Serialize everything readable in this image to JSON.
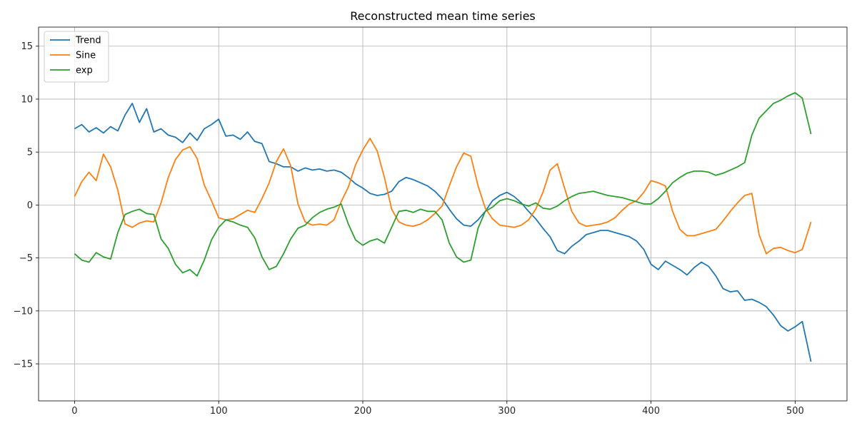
{
  "chart_data": {
    "type": "line",
    "title": "Reconstructed mean time series",
    "xlabel": "",
    "ylabel": "",
    "xlim": [
      -25,
      536
    ],
    "ylim": [
      -18.5,
      16.8
    ],
    "x_ticks": [
      0,
      100,
      200,
      300,
      400,
      500
    ],
    "y_ticks": [
      -15,
      -10,
      -5,
      0,
      5,
      10,
      15
    ],
    "grid": true,
    "legend_position": "top-left",
    "series": [
      {
        "name": "Trend",
        "color": "#1f77b4",
        "x": [
          0,
          5,
          10,
          15,
          20,
          25,
          30,
          35,
          40,
          45,
          50,
          55,
          60,
          65,
          70,
          75,
          80,
          85,
          90,
          95,
          100,
          105,
          110,
          115,
          120,
          125,
          130,
          135,
          140,
          145,
          150,
          155,
          160,
          165,
          170,
          175,
          180,
          185,
          190,
          195,
          200,
          205,
          210,
          215,
          220,
          225,
          230,
          235,
          240,
          245,
          250,
          255,
          260,
          265,
          270,
          275,
          280,
          285,
          290,
          295,
          300,
          305,
          310,
          315,
          320,
          325,
          330,
          335,
          340,
          345,
          350,
          355,
          360,
          365,
          370,
          375,
          380,
          385,
          390,
          395,
          400,
          405,
          410,
          415,
          420,
          425,
          430,
          435,
          440,
          445,
          450,
          455,
          460,
          465,
          470,
          475,
          480,
          485,
          490,
          495,
          500,
          505,
          511
        ],
        "values": [
          7.2,
          7.6,
          6.9,
          7.3,
          6.8,
          7.4,
          7.0,
          8.5,
          9.6,
          7.8,
          9.1,
          6.9,
          7.2,
          6.6,
          6.4,
          5.9,
          6.8,
          6.1,
          7.2,
          7.6,
          8.1,
          6.5,
          6.6,
          6.2,
          6.9,
          6.0,
          5.8,
          4.1,
          3.9,
          3.6,
          3.6,
          3.2,
          3.5,
          3.3,
          3.4,
          3.2,
          3.3,
          3.1,
          2.6,
          2.0,
          1.6,
          1.1,
          0.9,
          1.0,
          1.3,
          2.2,
          2.6,
          2.4,
          2.1,
          1.8,
          1.3,
          0.6,
          -0.4,
          -1.3,
          -1.9,
          -2.0,
          -1.4,
          -0.6,
          0.4,
          0.9,
          1.2,
          0.8,
          0.2,
          -0.6,
          -1.3,
          -2.2,
          -3.0,
          -4.3,
          -4.6,
          -3.9,
          -3.4,
          -2.8,
          -2.6,
          -2.4,
          -2.4,
          -2.6,
          -2.8,
          -3.0,
          -3.4,
          -4.2,
          -5.6,
          -6.1,
          -5.3,
          -5.7,
          -6.1,
          -6.6,
          -5.9,
          -5.4,
          -5.8,
          -6.7,
          -7.9,
          -8.2,
          -8.1,
          -9.0,
          -8.9,
          -9.2,
          -9.6,
          -10.4,
          -11.4,
          -11.9,
          -11.5,
          -11.0,
          -14.8
        ]
      },
      {
        "name": "Sine",
        "color": "#ff7f0e",
        "x": [
          0,
          5,
          10,
          15,
          20,
          25,
          30,
          35,
          40,
          45,
          50,
          55,
          60,
          65,
          70,
          75,
          80,
          85,
          90,
          95,
          100,
          105,
          110,
          115,
          120,
          125,
          130,
          135,
          140,
          145,
          150,
          155,
          160,
          165,
          170,
          175,
          180,
          185,
          190,
          195,
          200,
          205,
          210,
          215,
          220,
          225,
          230,
          235,
          240,
          245,
          250,
          255,
          260,
          265,
          270,
          275,
          280,
          285,
          290,
          295,
          300,
          305,
          310,
          315,
          320,
          325,
          330,
          335,
          340,
          345,
          350,
          355,
          360,
          365,
          370,
          375,
          380,
          385,
          390,
          395,
          400,
          405,
          410,
          415,
          420,
          425,
          430,
          435,
          440,
          445,
          450,
          455,
          460,
          465,
          470,
          475,
          480,
          485,
          490,
          495,
          500,
          505,
          511
        ],
        "values": [
          0.8,
          2.2,
          3.1,
          2.3,
          4.8,
          3.6,
          1.4,
          -1.8,
          -2.1,
          -1.7,
          -1.5,
          -1.6,
          0.2,
          2.6,
          4.3,
          5.2,
          5.5,
          4.4,
          1.9,
          0.4,
          -1.2,
          -1.4,
          -1.3,
          -0.9,
          -0.5,
          -0.7,
          0.6,
          2.1,
          4.1,
          5.3,
          3.7,
          0.1,
          -1.6,
          -1.9,
          -1.8,
          -1.9,
          -1.4,
          0.3,
          1.7,
          3.8,
          5.2,
          6.3,
          5.1,
          2.6,
          -0.4,
          -1.6,
          -1.9,
          -2.0,
          -1.8,
          -1.4,
          -0.8,
          -0.1,
          1.8,
          3.6,
          4.9,
          4.6,
          1.8,
          -0.3,
          -1.3,
          -1.9,
          -2.0,
          -2.1,
          -1.9,
          -1.4,
          -0.4,
          1.2,
          3.3,
          3.9,
          1.6,
          -0.6,
          -1.7,
          -2.0,
          -1.9,
          -1.8,
          -1.6,
          -1.2,
          -0.5,
          0.1,
          0.4,
          1.2,
          2.3,
          2.1,
          1.8,
          -0.6,
          -2.3,
          -2.9,
          -2.9,
          -2.7,
          -2.5,
          -2.3,
          -1.5,
          -0.6,
          0.2,
          0.9,
          1.1,
          -2.8,
          -4.6,
          -4.1,
          -4.0,
          -4.3,
          -4.5,
          -4.2,
          -1.6
        ]
      },
      {
        "name": "exp",
        "color": "#2ca02c",
        "x": [
          0,
          5,
          10,
          15,
          20,
          25,
          30,
          35,
          40,
          45,
          50,
          55,
          60,
          65,
          70,
          75,
          80,
          85,
          90,
          95,
          100,
          105,
          110,
          115,
          120,
          125,
          130,
          135,
          140,
          145,
          150,
          155,
          160,
          165,
          170,
          175,
          180,
          185,
          190,
          195,
          200,
          205,
          210,
          215,
          220,
          225,
          230,
          235,
          240,
          245,
          250,
          255,
          260,
          265,
          270,
          275,
          280,
          285,
          290,
          295,
          300,
          305,
          310,
          315,
          320,
          325,
          330,
          335,
          340,
          345,
          350,
          355,
          360,
          365,
          370,
          375,
          380,
          385,
          390,
          395,
          400,
          405,
          410,
          415,
          420,
          425,
          430,
          435,
          440,
          445,
          450,
          455,
          460,
          465,
          470,
          475,
          480,
          485,
          490,
          495,
          500,
          505,
          511
        ],
        "values": [
          -4.6,
          -5.2,
          -5.4,
          -4.5,
          -4.9,
          -5.1,
          -2.6,
          -0.9,
          -0.6,
          -0.4,
          -0.8,
          -0.9,
          -3.2,
          -4.1,
          -5.6,
          -6.4,
          -6.1,
          -6.7,
          -5.2,
          -3.3,
          -2.1,
          -1.4,
          -1.6,
          -1.9,
          -2.1,
          -3.1,
          -4.9,
          -6.1,
          -5.8,
          -4.6,
          -3.2,
          -2.2,
          -1.9,
          -1.2,
          -0.7,
          -0.4,
          -0.2,
          0.1,
          -1.8,
          -3.3,
          -3.8,
          -3.4,
          -3.2,
          -3.6,
          -2.1,
          -0.6,
          -0.5,
          -0.7,
          -0.4,
          -0.6,
          -0.6,
          -1.4,
          -3.6,
          -4.9,
          -5.4,
          -5.2,
          -2.2,
          -0.6,
          -0.2,
          0.4,
          0.6,
          0.4,
          0.1,
          -0.1,
          0.2,
          -0.3,
          -0.4,
          -0.1,
          0.4,
          0.8,
          1.1,
          1.2,
          1.3,
          1.1,
          0.9,
          0.8,
          0.7,
          0.5,
          0.3,
          0.1,
          0.1,
          0.6,
          1.3,
          2.1,
          2.6,
          3.0,
          3.2,
          3.2,
          3.1,
          2.8,
          3.0,
          3.3,
          3.6,
          4.0,
          6.6,
          8.2,
          8.9,
          9.6,
          9.9,
          10.3,
          10.6,
          10.1,
          6.7
        ]
      }
    ]
  }
}
